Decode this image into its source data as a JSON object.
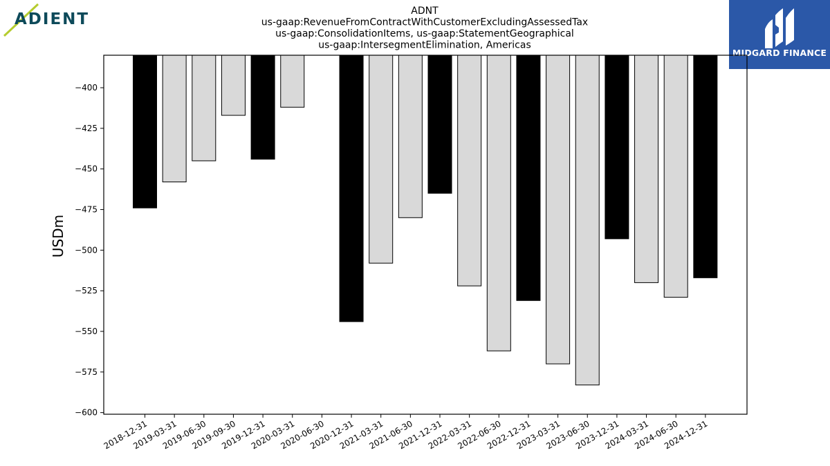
{
  "brand_left": {
    "name": "ADIENT",
    "accent_color": "#b5cc2e",
    "text_color": "#0d4a5a"
  },
  "brand_right": {
    "name": "MIDGARD FINANCE",
    "background": "#2b58a8"
  },
  "chart_data": {
    "type": "bar",
    "title_lines": [
      "ADNT",
      "us-gaap:RevenueFromContractWithCustomerExcludingAssessedTax",
      "us-gaap:ConsolidationItems, us-gaap:StatementGeographical",
      "us-gaap:IntersegmentElimination, Americas"
    ],
    "ylabel": "USDm",
    "xlabel": "",
    "ylim": [
      -601,
      -380
    ],
    "yticks": [
      -400,
      -425,
      -450,
      -475,
      -500,
      -525,
      -550,
      -575,
      -600
    ],
    "grid": false,
    "bar_colors": {
      "fiscal_year_end": "#000000",
      "quarter": "#d9d9d9"
    },
    "categories": [
      "2018-12-31",
      "2019-03-31",
      "2019-06-30",
      "2019-09-30",
      "2019-12-31",
      "2020-03-31",
      "2020-06-30",
      "2020-12-31",
      "2021-03-31",
      "2021-06-30",
      "2021-12-31",
      "2022-03-31",
      "2022-06-30",
      "2022-12-31",
      "2023-03-31",
      "2023-06-30",
      "2023-12-31",
      "2024-03-31",
      "2024-06-30",
      "2024-12-31"
    ],
    "values": [
      -474,
      -458,
      -445,
      -417,
      -444,
      -412,
      null,
      -544,
      -508,
      -480,
      -465,
      -522,
      -562,
      -531,
      -570,
      -583,
      -493,
      -520,
      -529,
      -517
    ],
    "highlight": [
      true,
      false,
      false,
      false,
      true,
      false,
      false,
      true,
      false,
      false,
      true,
      false,
      false,
      true,
      false,
      false,
      true,
      false,
      false,
      true
    ]
  }
}
